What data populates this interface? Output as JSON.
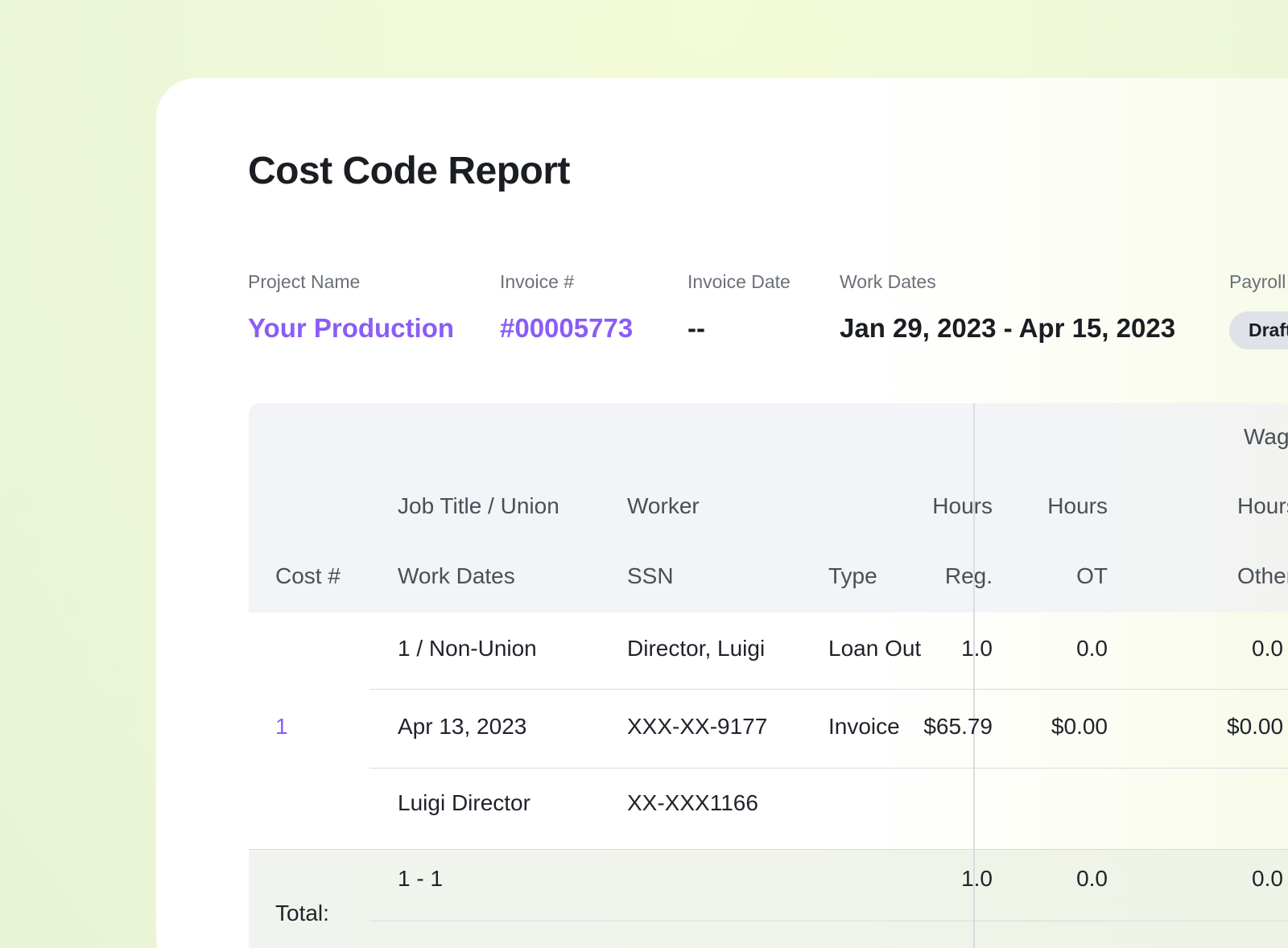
{
  "report": {
    "title": "Cost Code Report"
  },
  "meta": {
    "project_label": "Project Name",
    "project_value": "Your Production",
    "invoice_label": "Invoice #",
    "invoice_value": "#00005773",
    "invoice_date_label": "Invoice Date",
    "invoice_date_value": "--",
    "work_dates_label": "Work Dates",
    "work_dates_value": "Jan 29, 2023 - Apr 15, 2023",
    "payroll_label": "Payroll",
    "payroll_status": "Draft"
  },
  "table": {
    "group_header": "Wages",
    "headers": {
      "cost": "Cost #",
      "job_title": "Job Title / Union",
      "work_dates": "Work Dates",
      "worker": "Worker",
      "ssn": "SSN",
      "type": "Type",
      "hours_reg_top": "Hours",
      "hours_reg_bottom": "Reg.",
      "hours_ot_top": "Hours",
      "hours_ot_bottom": "OT",
      "hours_other_top": "Hours",
      "hours_other_bottom": "Other"
    },
    "row": {
      "cost": "1",
      "job_union": "1 / Non-Union",
      "date": "Apr 13, 2023",
      "name": "Luigi Director",
      "worker": "Director, Luigi",
      "ssn": "XXX-XX-9177",
      "ein": "XX-XXX1166",
      "type_top": "Loan Out",
      "type_bottom": "Invoice",
      "hours_reg": "1.0",
      "hours_ot": "0.0",
      "hours_other": "0.0",
      "amount_reg": "$65.79",
      "amount_ot": "$0.00",
      "amount_other": "$0.00"
    },
    "total": {
      "label": "Total:",
      "range": "1 - 1",
      "hours_reg": "1.0",
      "hours_ot": "0.0",
      "hours_other": "0.0"
    }
  }
}
